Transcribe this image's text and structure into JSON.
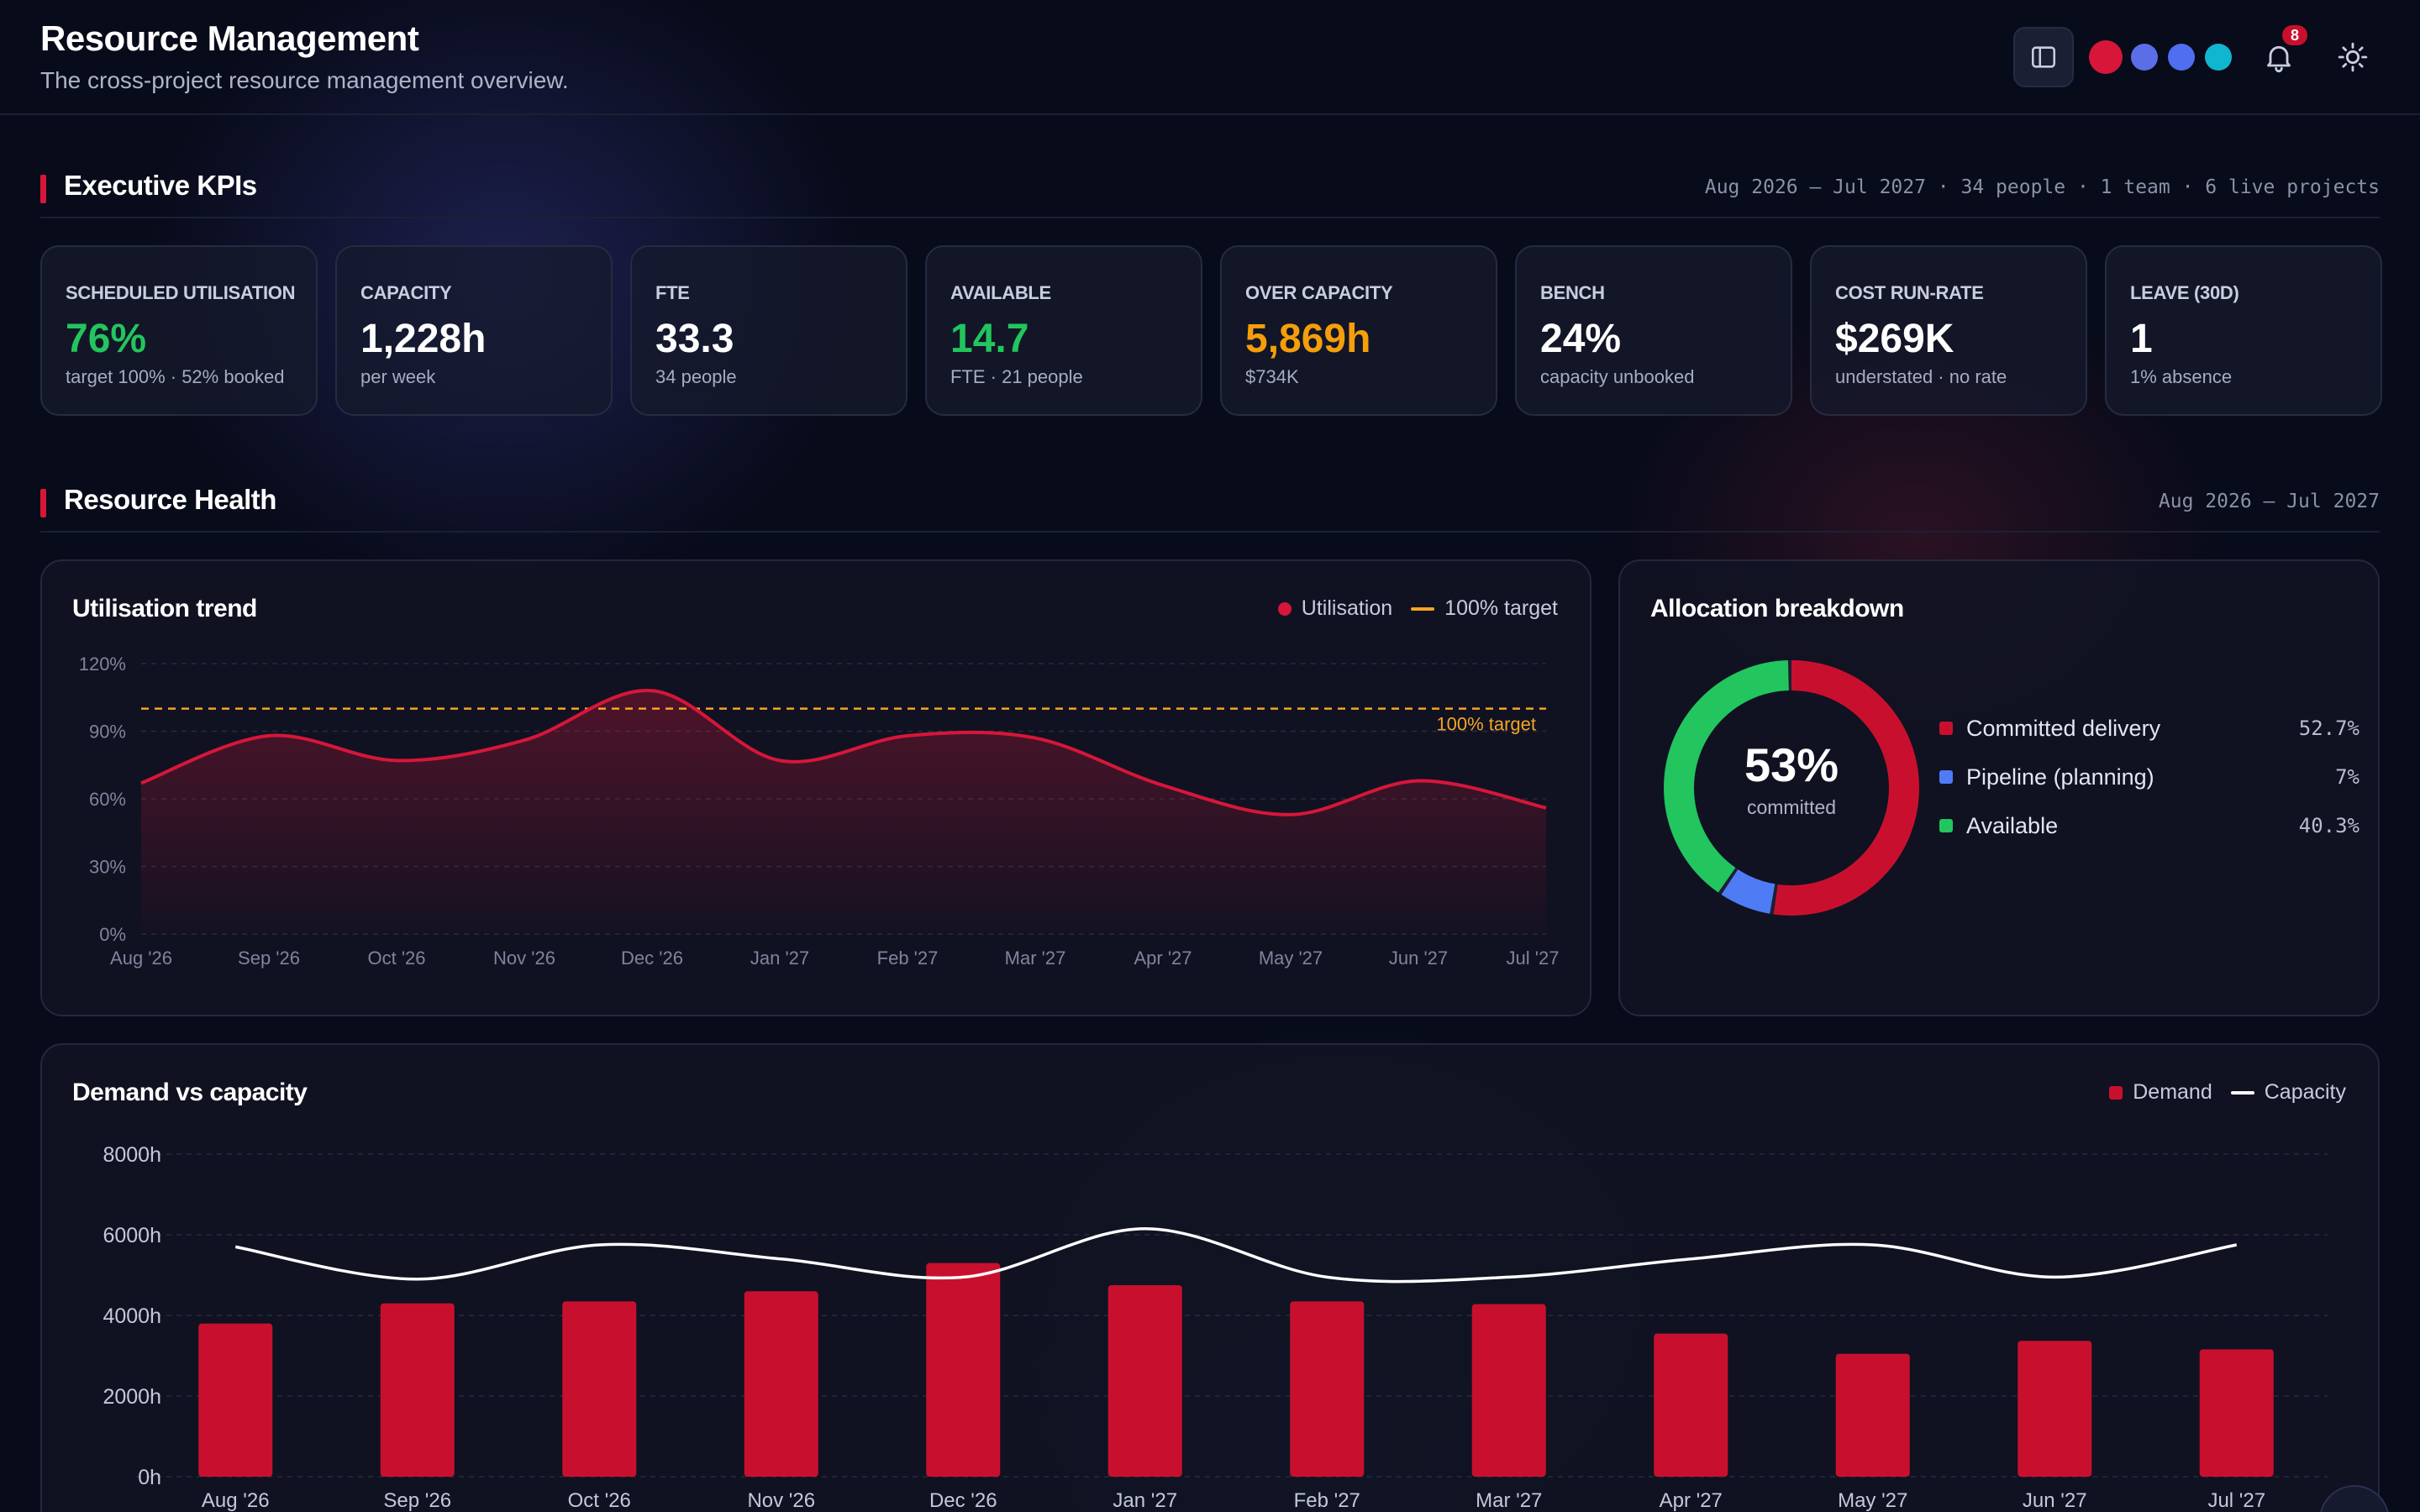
{
  "header": {
    "title": "Resource Management",
    "subtitle": "The cross-project resource management overview.",
    "notification_count": "8",
    "theme_colors": [
      "#d7163a",
      "#5b6ee8",
      "#4f6ef0",
      "#10b6d0"
    ]
  },
  "sections": {
    "kpis": {
      "title": "Executive KPIs",
      "meta": "Aug 2026 – Jul 2027 · 34 people · 1 team · 6 live projects"
    },
    "health": {
      "title": "Resource Health",
      "meta": "Aug 2026 – Jul 2027"
    }
  },
  "kpis": [
    {
      "label": "Scheduled utilisation",
      "value": "76%",
      "note": "target 100% · 52% booked",
      "color": "#22c55e"
    },
    {
      "label": "Capacity",
      "value": "1,228h",
      "note": "per week",
      "color": "#ffffff"
    },
    {
      "label": "FTE",
      "value": "33.3",
      "note": "34 people",
      "color": "#ffffff"
    },
    {
      "label": "Available",
      "value": "14.7",
      "note": "FTE · 21 people",
      "color": "#22c55e"
    },
    {
      "label": "Over capacity",
      "value": "5,869h",
      "note": "$734K",
      "color": "#f59e0b"
    },
    {
      "label": "Bench",
      "value": "24%",
      "note": "capacity unbooked",
      "color": "#ffffff"
    },
    {
      "label": "Cost run-rate",
      "value": "$269K",
      "note": "understated · no rate",
      "color": "#ffffff"
    },
    {
      "label": "Leave (30d)",
      "value": "1",
      "note": "1% absence",
      "color": "#ffffff"
    }
  ],
  "utilisation": {
    "title": "Utilisation trend",
    "legend": {
      "series": "Utilisation",
      "target": "100% target"
    },
    "target_label": "100% target",
    "colors": {
      "line": "#d7163a",
      "target": "#f5a524"
    }
  },
  "allocation": {
    "title": "Allocation breakdown",
    "center_value": "53%",
    "center_label": "committed",
    "items": [
      {
        "label": "Committed delivery",
        "pct": "52.7%",
        "value": 52.7,
        "color": "#c8102e"
      },
      {
        "label": "Pipeline (planning)",
        "pct": "7%",
        "value": 7,
        "color": "#4f7cf5"
      },
      {
        "label": "Available",
        "pct": "40.3%",
        "value": 40.3,
        "color": "#22c55e"
      }
    ]
  },
  "demand": {
    "title": "Demand vs capacity",
    "legend": {
      "demand": "Demand",
      "capacity": "Capacity"
    },
    "colors": {
      "bar": "#c8102e",
      "line": "#ffffff"
    }
  },
  "chart_data": [
    {
      "type": "line",
      "title": "Utilisation trend",
      "x": [
        "Aug '26",
        "Sep '26",
        "Oct '26",
        "Nov '26",
        "Dec '26",
        "Jan '27",
        "Feb '27",
        "Mar '27",
        "Apr '27",
        "May '27",
        "Jun '27",
        "Jul '27"
      ],
      "series": [
        {
          "name": "Utilisation",
          "values": [
            67,
            88,
            77,
            86,
            108,
            77,
            88,
            87,
            66,
            53,
            68,
            56
          ]
        },
        {
          "name": "100% target",
          "values": [
            100,
            100,
            100,
            100,
            100,
            100,
            100,
            100,
            100,
            100,
            100,
            100
          ]
        }
      ],
      "y_ticks": [
        "0%",
        "30%",
        "60%",
        "90%",
        "120%"
      ],
      "ylim": [
        0,
        120
      ],
      "grid": true,
      "legend": "top-right"
    },
    {
      "type": "pie",
      "title": "Allocation breakdown",
      "labels": [
        "Committed delivery",
        "Pipeline (planning)",
        "Available"
      ],
      "values": [
        52.7,
        7,
        40.3
      ]
    },
    {
      "type": "bar",
      "title": "Demand vs capacity",
      "categories": [
        "Aug '26",
        "Sep '26",
        "Oct '26",
        "Nov '26",
        "Dec '26",
        "Jan '27",
        "Feb '27",
        "Mar '27",
        "Apr '27",
        "May '27",
        "Jun '27",
        "Jul '27"
      ],
      "series": [
        {
          "name": "Demand",
          "values": [
            3800,
            4300,
            4350,
            4600,
            5300,
            4750,
            4350,
            4280,
            3550,
            3050,
            3370,
            3160
          ]
        },
        {
          "name": "Capacity",
          "values": [
            5700,
            4900,
            5750,
            5400,
            4950,
            6150,
            4950,
            4950,
            5400,
            5750,
            4950,
            5750
          ]
        }
      ],
      "y_ticks": [
        "0h",
        "2000h",
        "4000h",
        "6000h",
        "8000h"
      ],
      "ylim": [
        0,
        8000
      ],
      "grid": true,
      "legend": "top-right"
    }
  ]
}
